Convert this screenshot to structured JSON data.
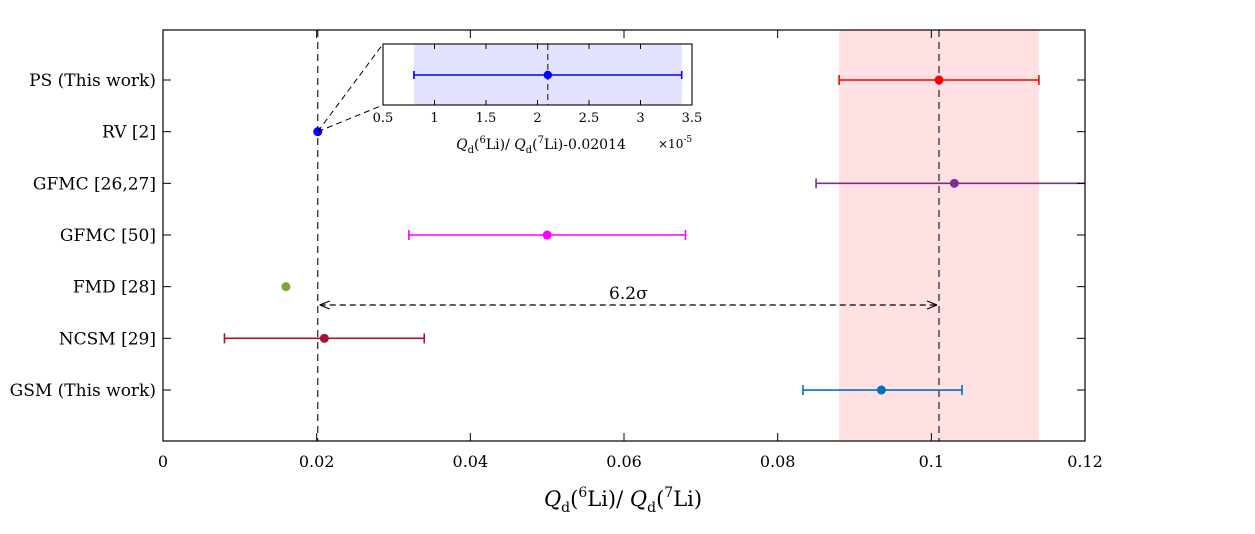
{
  "chart_data": {
    "type": "scatter",
    "title": "",
    "xlabel": "Q_d(6Li)/ Q_d(7Li)",
    "xlabel_parts": {
      "q": "Q",
      "sub": "d",
      "sup6": "6",
      "li6": "Li)/ ",
      "sup7": "7",
      "li7": "Li)"
    },
    "ylabel": "",
    "xlim": [
      0,
      0.12
    ],
    "xticks": [
      "0",
      "0.02",
      "0.04",
      "0.06",
      "0.08",
      "0.1",
      "0.12"
    ],
    "xtick_values": [
      0,
      0.02,
      0.04,
      0.06,
      0.08,
      0.1,
      0.12
    ],
    "categories": [
      "PS (This work)",
      "RV [2]",
      "GFMC [26,27]",
      "GFMC [50]",
      "FMD [28]",
      "NCSM [29]",
      "GSM (This work)"
    ],
    "points": [
      {
        "label": "PS (This work)",
        "value": 0.101,
        "err_low": 0.088,
        "err_high": 0.114,
        "color": "#ff0000"
      },
      {
        "label": "RV [2]",
        "value": 0.02014,
        "err_low": null,
        "err_high": null,
        "color": "#0000ff"
      },
      {
        "label": "GFMC [26,27]",
        "value": 0.103,
        "err_low": 0.085,
        "err_high": 0.121,
        "color": "#7e2f8e"
      },
      {
        "label": "GFMC [50]",
        "value": 0.05,
        "err_low": 0.032,
        "err_high": 0.068,
        "color": "#ff00ff"
      },
      {
        "label": "FMD [28]",
        "value": 0.016,
        "err_low": null,
        "err_high": null,
        "color": "#77ac30"
      },
      {
        "label": "NCSM [29]",
        "value": 0.021,
        "err_low": 0.008,
        "err_high": 0.034,
        "color": "#a2142f"
      },
      {
        "label": "GSM (This work)",
        "value": 0.0935,
        "err_low": 0.0833,
        "err_high": 0.104,
        "color": "#0072bd"
      }
    ],
    "shaded_band": {
      "from": 0.088,
      "to": 0.114,
      "color": "#ffe0e3"
    },
    "reference_lines": [
      0.02014,
      0.101
    ],
    "annotation": {
      "text": "6.2σ",
      "from": 0.02014,
      "to": 0.101
    },
    "inset": {
      "xlabel": "Q_d(6Li)/ Q_d(7Li)-0.02014",
      "xlabel_parts": {
        "q": "Q",
        "sub": "d",
        "sup6": "6",
        "li6": "Li)/ ",
        "sup7": "7",
        "li7": "Li)-0.02014"
      },
      "multiplier": "×10",
      "multiplier_exp": "-5",
      "xlim": [
        0.5,
        3.5
      ],
      "xticks": [
        "0.5",
        "1",
        "1.5",
        "2",
        "2.5",
        "3",
        "3.5"
      ],
      "xtick_values": [
        0.5,
        1,
        1.5,
        2,
        2.5,
        3,
        3.5
      ],
      "value": 2.1,
      "err_low": 0.8,
      "err_high": 3.4,
      "band": [
        0.8,
        3.4
      ],
      "band_color": "#e3e3ff",
      "color": "#0000ff"
    }
  }
}
